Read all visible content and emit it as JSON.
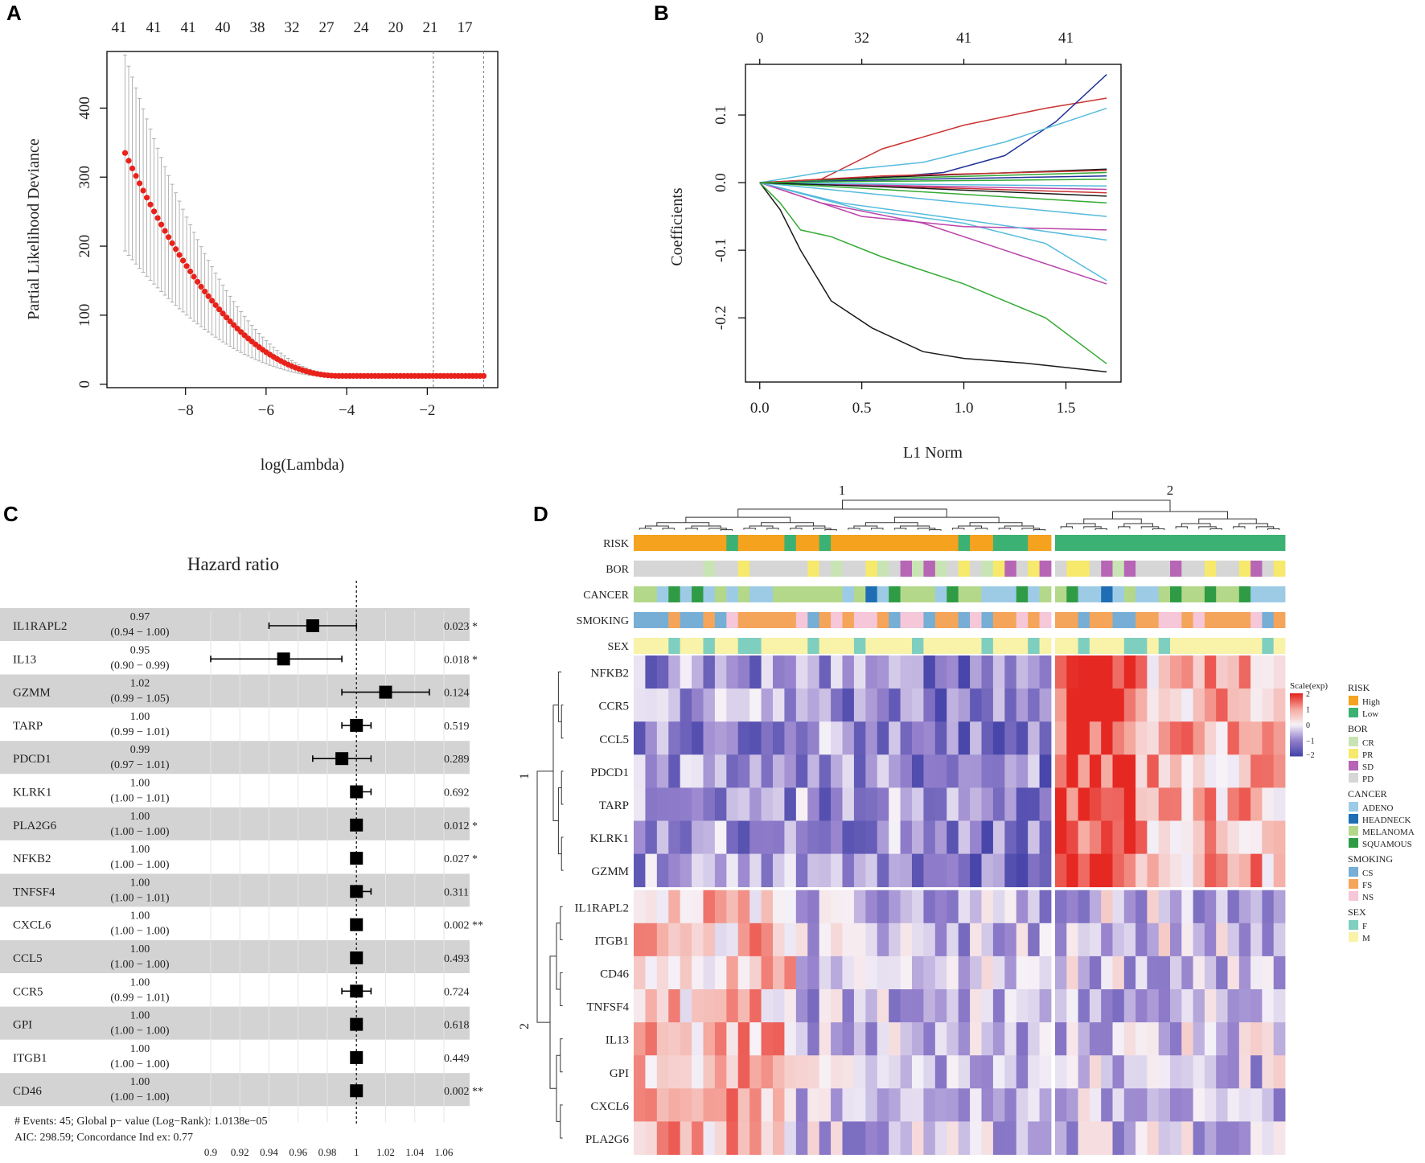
{
  "panels": {
    "a": "A",
    "b": "B",
    "c": "C",
    "d": "D"
  },
  "chart_data": [
    {
      "id": "A",
      "type": "line",
      "subtype": "cv-errorbar",
      "xlabel": "log(Lambda)",
      "ylabel": "Partial Likelihood Deviance",
      "xlim": [
        -9.95,
        -0.25
      ],
      "ylim": [
        -5,
        482
      ],
      "xticks": [
        -8,
        -6,
        -4,
        -2
      ],
      "yticks": [
        0,
        100,
        200,
        300,
        400
      ],
      "top_ticks": [
        "41",
        "41",
        "41",
        "40",
        "38",
        "32",
        "27",
        "24",
        "20",
        "21",
        "17"
      ],
      "curve": {
        "x_start": -9.5,
        "x_end": -0.6,
        "n_points": 100,
        "y_start": 335,
        "y_at_min": 12,
        "err_start": 140
      },
      "vlines": [
        -1.85,
        -0.6
      ]
    },
    {
      "id": "B",
      "type": "line",
      "xlabel": "L1 Norm",
      "ylabel": "Coefficients",
      "xlim": [
        -0.07,
        1.77
      ],
      "ylim": [
        -0.295,
        0.175
      ],
      "xticks": [
        0.0,
        0.5,
        1.0,
        1.5
      ],
      "xtick_labels": [
        "0.0",
        "0.5",
        "1.0",
        "1.5"
      ],
      "yticks": [
        -0.2,
        -0.1,
        0.0,
        0.1
      ],
      "ytick_labels": [
        "-0.2",
        "-0.1",
        "0.0",
        "0.1"
      ],
      "top_ticks": [
        "0",
        "32",
        "41",
        "41"
      ],
      "top_tick_positions": [
        0.0,
        0.5,
        1.0,
        1.5
      ],
      "paths": [
        {
          "color": "#1a1a1a",
          "pts": [
            [
              0,
              0
            ],
            [
              0.1,
              -0.04
            ],
            [
              0.2,
              -0.1
            ],
            [
              0.35,
              -0.175
            ],
            [
              0.55,
              -0.215
            ],
            [
              0.8,
              -0.25
            ],
            [
              1.0,
              -0.26
            ],
            [
              1.3,
              -0.267
            ],
            [
              1.7,
              -0.28
            ]
          ]
        },
        {
          "color": "#33aa33",
          "pts": [
            [
              0,
              0
            ],
            [
              0.1,
              -0.03
            ],
            [
              0.2,
              -0.07
            ],
            [
              0.35,
              -0.08
            ],
            [
              0.6,
              -0.11
            ],
            [
              1.0,
              -0.15
            ],
            [
              1.4,
              -0.2
            ],
            [
              1.7,
              -0.268
            ]
          ]
        },
        {
          "color": "#cc3333",
          "pts": [
            [
              0,
              0
            ],
            [
              0.3,
              0.005
            ],
            [
              0.6,
              0.05
            ],
            [
              1.0,
              0.085
            ],
            [
              1.4,
              0.11
            ],
            [
              1.7,
              0.125
            ]
          ]
        },
        {
          "color": "#223399",
          "pts": [
            [
              0,
              0
            ],
            [
              0.5,
              0.005
            ],
            [
              0.9,
              0.015
            ],
            [
              1.2,
              0.04
            ],
            [
              1.45,
              0.09
            ],
            [
              1.7,
              0.16
            ]
          ]
        },
        {
          "color": "#55bbdd",
          "pts": [
            [
              0,
              0
            ],
            [
              0.3,
              0.015
            ],
            [
              0.8,
              0.03
            ],
            [
              1.2,
              0.06
            ],
            [
              1.5,
              0.09
            ],
            [
              1.7,
              0.11
            ]
          ]
        },
        {
          "color": "#55bbdd",
          "pts": [
            [
              0,
              0
            ],
            [
              0.5,
              -0.04
            ],
            [
              1.0,
              -0.06
            ],
            [
              1.4,
              -0.09
            ],
            [
              1.7,
              -0.145
            ]
          ]
        },
        {
          "color": "#bb44aa",
          "pts": [
            [
              0,
              0
            ],
            [
              0.3,
              -0.03
            ],
            [
              0.8,
              -0.06
            ],
            [
              1.2,
              -0.1
            ],
            [
              1.7,
              -0.15
            ]
          ]
        },
        {
          "color": "#bb44aa",
          "pts": [
            [
              0,
              0
            ],
            [
              0.5,
              -0.05
            ],
            [
              1.0,
              -0.065
            ],
            [
              1.7,
              -0.07
            ]
          ]
        },
        {
          "color": "#55bbdd",
          "pts": [
            [
              0,
              0
            ],
            [
              0.4,
              -0.03
            ],
            [
              1.0,
              -0.055
            ],
            [
              1.7,
              -0.085
            ]
          ]
        },
        {
          "color": "#55bbdd",
          "pts": [
            [
              0,
              0
            ],
            [
              0.5,
              -0.015
            ],
            [
              1.0,
              -0.03
            ],
            [
              1.7,
              -0.05
            ]
          ]
        },
        {
          "color": "#33aa33",
          "pts": [
            [
              0,
              0
            ],
            [
              0.6,
              -0.01
            ],
            [
              1.7,
              -0.03
            ]
          ]
        },
        {
          "color": "#cc3333",
          "pts": [
            [
              0,
              0
            ],
            [
              0.6,
              -0.005
            ],
            [
              1.7,
              -0.015
            ]
          ]
        },
        {
          "color": "#1a1a1a",
          "pts": [
            [
              0,
              0
            ],
            [
              0.6,
              0.008
            ],
            [
              1.7,
              0.02
            ]
          ]
        },
        {
          "color": "#33aa33",
          "pts": [
            [
              0,
              0
            ],
            [
              0.6,
              0.006
            ],
            [
              1.7,
              0.015
            ]
          ]
        },
        {
          "color": "#bb44aa",
          "pts": [
            [
              0,
              0
            ],
            [
              0.6,
              -0.004
            ],
            [
              1.7,
              -0.01
            ]
          ]
        },
        {
          "color": "#223399",
          "pts": [
            [
              0,
              0
            ],
            [
              0.6,
              0.004
            ],
            [
              1.7,
              0.01
            ]
          ]
        },
        {
          "color": "#cc3333",
          "pts": [
            [
              0,
              0
            ],
            [
              0.6,
              0.01
            ],
            [
              1.7,
              0.018
            ]
          ]
        },
        {
          "color": "#55bbdd",
          "pts": [
            [
              0,
              0
            ],
            [
              0.6,
              -0.002
            ],
            [
              1.7,
              -0.005
            ]
          ]
        },
        {
          "color": "#1a1a1a",
          "pts": [
            [
              0,
              0
            ],
            [
              0.6,
              -0.006
            ],
            [
              1.7,
              -0.02
            ]
          ]
        },
        {
          "color": "#33aa33",
          "pts": [
            [
              0,
              0
            ],
            [
              0.6,
              0.002
            ],
            [
              1.7,
              0.005
            ]
          ]
        }
      ]
    },
    {
      "id": "C",
      "type": "forest",
      "title": "Hazard  ratio",
      "xticks": [
        0.9,
        0.92,
        0.94,
        0.96,
        0.98,
        1,
        1.02,
        1.04,
        1.06
      ],
      "xtick_labels": [
        "0.9",
        "0.92",
        "0.94",
        "0.96",
        "0.98",
        "1",
        "1.02",
        "1.04",
        "1.06"
      ],
      "ref": 1,
      "rows": [
        {
          "gene": "IL1RAPL2",
          "hr": 0.97,
          "lo": 0.94,
          "hi": 1.0,
          "hr_text": "0.97",
          "ci_text": "(0.94 − 1.00)",
          "p": "0.023 *"
        },
        {
          "gene": "IL13",
          "hr": 0.95,
          "lo": 0.9,
          "hi": 0.99,
          "hr_text": "0.95",
          "ci_text": "(0.90 − 0.99)",
          "p": "0.018 *"
        },
        {
          "gene": "GZMM",
          "hr": 1.02,
          "lo": 0.99,
          "hi": 1.05,
          "hr_text": "1.02",
          "ci_text": "(0.99 − 1.05)",
          "p": "0.124"
        },
        {
          "gene": "TARP",
          "hr": 1.0,
          "lo": 0.99,
          "hi": 1.01,
          "hr_text": "1.00",
          "ci_text": "(0.99 − 1.01)",
          "p": "0.519"
        },
        {
          "gene": "PDCD1",
          "hr": 0.99,
          "lo": 0.97,
          "hi": 1.01,
          "hr_text": "0.99",
          "ci_text": "(0.97 − 1.01)",
          "p": "0.289"
        },
        {
          "gene": "KLRK1",
          "hr": 1.0,
          "lo": 1.0,
          "hi": 1.01,
          "hr_text": "1.00",
          "ci_text": "(1.00 − 1.01)",
          "p": "0.692"
        },
        {
          "gene": "PLA2G6",
          "hr": 1.0,
          "lo": 1.0,
          "hi": 1.0,
          "hr_text": "1.00",
          "ci_text": "(1.00 − 1.00)",
          "p": "0.012 *"
        },
        {
          "gene": "NFKB2",
          "hr": 1.0,
          "lo": 1.0,
          "hi": 1.0,
          "hr_text": "1.00",
          "ci_text": "(1.00 − 1.00)",
          "p": "0.027 *"
        },
        {
          "gene": "TNFSF4",
          "hr": 1.0,
          "lo": 1.0,
          "hi": 1.01,
          "hr_text": "1.00",
          "ci_text": "(1.00 − 1.01)",
          "p": "0.311"
        },
        {
          "gene": "CXCL6",
          "hr": 1.0,
          "lo": 1.0,
          "hi": 1.0,
          "hr_text": "1.00",
          "ci_text": "(1.00 − 1.00)",
          "p": "0.002 **"
        },
        {
          "gene": "CCL5",
          "hr": 1.0,
          "lo": 1.0,
          "hi": 1.0,
          "hr_text": "1.00",
          "ci_text": "(1.00 − 1.00)",
          "p": "0.493"
        },
        {
          "gene": "CCR5",
          "hr": 1.0,
          "lo": 0.99,
          "hi": 1.01,
          "hr_text": "1.00",
          "ci_text": "(0.99 − 1.01)",
          "p": "0.724"
        },
        {
          "gene": "GPI",
          "hr": 1.0,
          "lo": 1.0,
          "hi": 1.0,
          "hr_text": "1.00",
          "ci_text": "(1.00 − 1.00)",
          "p": "0.618"
        },
        {
          "gene": "ITGB1",
          "hr": 1.0,
          "lo": 1.0,
          "hi": 1.0,
          "hr_text": "1.00",
          "ci_text": "(1.00 − 1.00)",
          "p": "0.449"
        },
        {
          "gene": "CD46",
          "hr": 1.0,
          "lo": 1.0,
          "hi": 1.0,
          "hr_text": "1.00",
          "ci_text": "(1.00 − 1.00)",
          "p": "0.002 **"
        }
      ],
      "footer1": "# Events: 45; Global p−  value (Log−Rank): 1.0138e−05",
      "footer2": "AIC: 298.59; Concordance Ind    ex: 0.77"
    },
    {
      "id": "D",
      "type": "heatmap",
      "col_cluster_labels": [
        "1",
        "2"
      ],
      "row_cluster_labels": [
        "1",
        "2"
      ],
      "n_cols_group1": 36,
      "n_cols_group2": 20,
      "annotation_rows": [
        "RISK",
        "BOR",
        "CANCER",
        "SMOKING",
        "SEX"
      ],
      "genes": [
        "NFKB2",
        "CCR5",
        "CCL5",
        "PDCD1",
        "TARP",
        "KLRK1",
        "GZMM",
        "IL1RAPL2",
        "ITGB1",
        "CD46",
        "TNFSF4",
        "IL13",
        "GPI",
        "CXCL6",
        "PLA2G6"
      ],
      "gene_group1_count": 7,
      "scale_title": "Scale(exp)",
      "scale_ticks": [
        "2",
        "1",
        "0",
        "−1",
        "−2"
      ],
      "legend": [
        {
          "title": "RISK",
          "items": [
            {
              "label": "High",
              "color": "#f5a21e"
            },
            {
              "label": "Low",
              "color": "#3bb273"
            }
          ]
        },
        {
          "title": "BOR",
          "items": [
            {
              "label": "CR",
              "color": "#c9e4b4"
            },
            {
              "label": "PR",
              "color": "#f6e96b"
            },
            {
              "label": "SD",
              "color": "#b765b5"
            },
            {
              "label": "PD",
              "color": "#d6d6d6"
            }
          ]
        },
        {
          "title": "CANCER",
          "items": [
            {
              "label": "ADENO",
              "color": "#9dcbe6"
            },
            {
              "label": "HEADNECK",
              "color": "#1f6eb5"
            },
            {
              "label": "MELANOMA",
              "color": "#b3d88a"
            },
            {
              "label": "SQUAMOUS",
              "color": "#2f9c45"
            }
          ]
        },
        {
          "title": "SMOKING",
          "items": [
            {
              "label": "CS",
              "color": "#76aed6"
            },
            {
              "label": "FS",
              "color": "#f5a55a"
            },
            {
              "label": "NS",
              "color": "#f6c7d9"
            }
          ]
        },
        {
          "title": "SEX",
          "items": [
            {
              "label": "F",
              "color": "#7fcfc0"
            },
            {
              "label": "M",
              "color": "#f8f3a8"
            }
          ]
        }
      ]
    }
  ]
}
